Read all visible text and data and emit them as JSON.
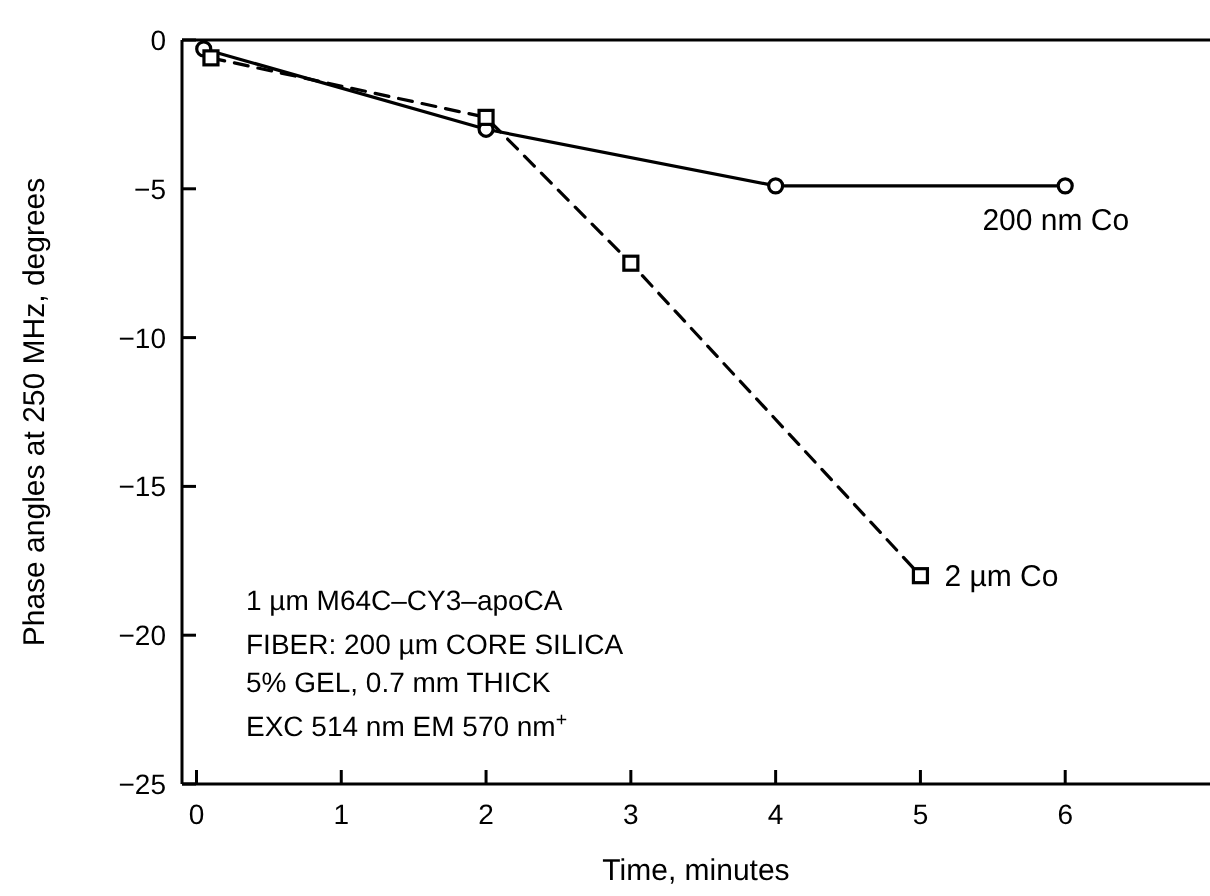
{
  "chart_data": {
    "type": "line",
    "xlabel": "Time, minutes",
    "ylabel": "Phase angles at 250 MHz, degrees",
    "xlim": [
      -0.1,
      7
    ],
    "ylim": [
      -25,
      0
    ],
    "xticks": [
      0,
      1,
      2,
      3,
      4,
      5,
      6
    ],
    "yticks": [
      {
        "value": -25,
        "label": "−25"
      },
      {
        "value": -20,
        "label": "−20"
      },
      {
        "value": -15,
        "label": "−15"
      },
      {
        "value": -10,
        "label": "−10"
      },
      {
        "value": -5,
        "label": "−5"
      },
      0
    ],
    "grid": false,
    "series": [
      {
        "name": "200 nm Co",
        "color": "#000000",
        "marker": "circle",
        "line_style": "solid",
        "x": [
          0.05,
          2,
          4,
          6
        ],
        "values": [
          -0.3,
          -3,
          -4.9,
          -4.9
        ]
      },
      {
        "name": "2 µm Co",
        "color": "#000000",
        "marker": "square",
        "line_style": "dashed",
        "x": [
          0.1,
          2,
          3,
          5
        ],
        "values": [
          -0.6,
          -2.6,
          -7.5,
          -18
        ]
      }
    ],
    "annotations": [
      "1 µm M64C–CY3–apoCA",
      "FIBER: 200 µm CORE SILICA",
      "5% GEL, 0.7 mm THICK",
      "EXC 514 nm EM 570 nm$^{+}$"
    ]
  }
}
